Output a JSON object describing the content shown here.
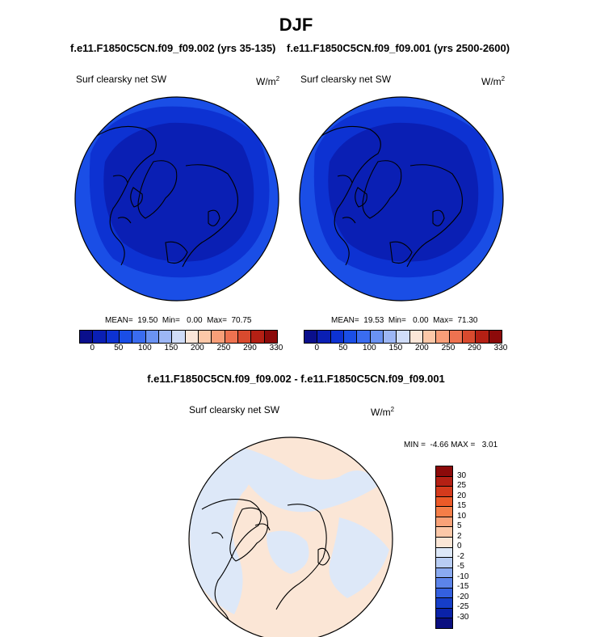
{
  "title": "DJF",
  "panel_left": {
    "case": "f.e11.F1850C5CN.f09_f09.002 (yrs 35-135)",
    "variable": "Surf clearsky net SW",
    "units": "W/m",
    "units_sup": "2",
    "stats": "MEAN=  19.50  Min=   0.00  Max=  70.75"
  },
  "panel_right": {
    "case": "f.e11.F1850C5CN.f09_f09.001 (yrs 2500-2600)",
    "variable": "Surf clearsky net SW",
    "units": "W/m",
    "units_sup": "2",
    "stats": "MEAN=  19.53  Min=   0.00  Max=  71.30"
  },
  "abs_colorbar": {
    "colors": [
      "#0a0f8c",
      "#0a1fb4",
      "#0d32d2",
      "#1a4ee6",
      "#3a6cf0",
      "#6a92f2",
      "#9cb6f5",
      "#cfdcf8",
      "#fbe6d8",
      "#fcc8a8",
      "#f89e78",
      "#ee7250",
      "#d94a2e",
      "#b42014",
      "#8c0a0a"
    ],
    "labels": [
      "0",
      "50",
      "100",
      "150",
      "200",
      "250",
      "290",
      "330"
    ]
  },
  "diff_panel": {
    "title": "f.e11.F1850C5CN.f09_f09.002 - f.e11.F1850C5CN.f09_f09.001",
    "variable": "Surf clearsky net SW",
    "units": "W/m",
    "units_sup": "2",
    "stats": "MIN =  -4.66 MAX =   3.01"
  },
  "diff_colorbar": {
    "colors": [
      "#8c0a0a",
      "#b42014",
      "#d43a1c",
      "#ec5a28",
      "#f57e48",
      "#f9a278",
      "#fcc8a8",
      "#fbe6d6",
      "#dde8f8",
      "#b8cdf4",
      "#8aaaf0",
      "#5c84ea",
      "#3460e0",
      "#163ec8",
      "#0a22a8",
      "#0a0f80"
    ],
    "labels": [
      "30",
      "25",
      "20",
      "15",
      "10",
      "5",
      "2",
      "0",
      "-2",
      "-5",
      "-10",
      "-15",
      "-20",
      "-25",
      "-30"
    ]
  },
  "map_colors": {
    "polar_outer": "#1a4ee6",
    "polar_mid": "#0d32d2",
    "polar_inner": "#0a1fb4",
    "diff_pos": "#fbe6d6",
    "diff_neg": "#dde8f8"
  }
}
